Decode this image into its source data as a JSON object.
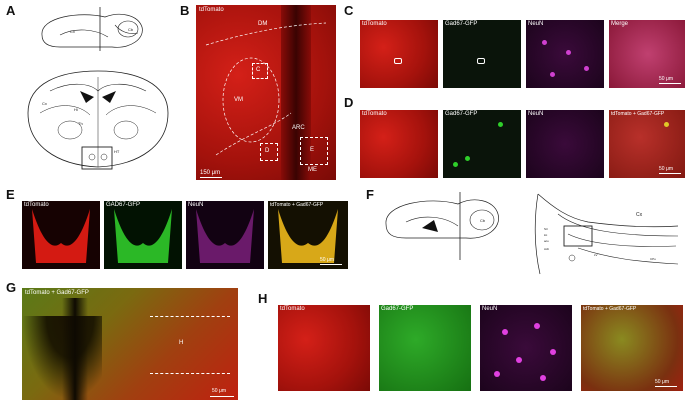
{
  "panels": {
    "A": "A",
    "B": "B",
    "C": "C",
    "D": "D",
    "E": "E",
    "F": "F",
    "G": "G",
    "H": "H"
  },
  "schematic_a": {
    "sagittal_labels": [
      "Cx",
      "Cb"
    ],
    "coronal_labels": [
      "Cx",
      "Hi",
      "Th",
      "HT"
    ]
  },
  "panel_b": {
    "channel": "tdTomato",
    "regions": {
      "dm": "DM",
      "vm": "VM",
      "arc": "ARC",
      "me": "ME"
    },
    "boxes": {
      "c": "C",
      "d": "D",
      "e": "E"
    },
    "scale": "150 μm"
  },
  "panel_c": {
    "labels": [
      "tdTomato",
      "Gad67-GFP",
      "NeuN",
      "Merge"
    ],
    "scale": "50 μm"
  },
  "panel_d": {
    "labels": [
      "tdTomato",
      "Gad67-GFP",
      "NeuN",
      "tdTomato + Gad67-GFP"
    ],
    "scale": "50 μm"
  },
  "panel_e": {
    "labels": [
      "tdTomato",
      "GAD67-GFP",
      "NeuN",
      "tdTomato + Gad67-GFP"
    ],
    "scale": "50 μm"
  },
  "panel_f": {
    "labels": [
      "Cx",
      "Str",
      "lot",
      "aco",
      "Acb",
      "LV",
      "CPu"
    ]
  },
  "panel_g": {
    "label": "tdTomato + Gad67-GFP",
    "box": "H",
    "scale": "50 μm"
  },
  "panel_h": {
    "labels": [
      "tdTomato",
      "Gad67-GFP",
      "NeuN",
      "tdTomato + Gad67-GFP"
    ],
    "scale": "50 μm"
  },
  "colors": {
    "tdtomato": "#c8170f",
    "gfp": "#1f8a1a",
    "neun": "#c02cc0",
    "merge_yellow": "#c8b420"
  }
}
